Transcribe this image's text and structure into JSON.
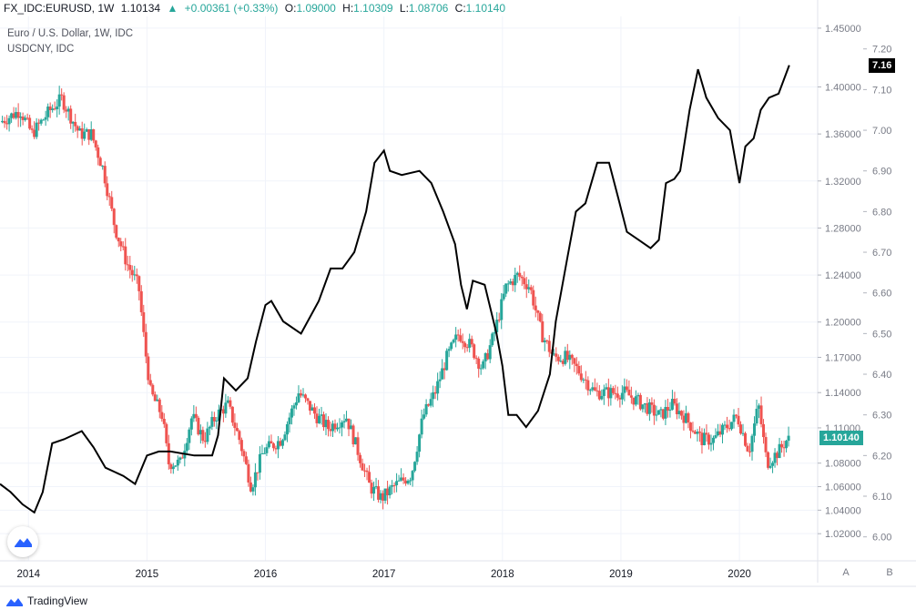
{
  "header": {
    "symbol": "FX_IDC:EURUSD, 1W",
    "last": "1.10134",
    "change": "+0.00361 (+0.33%)",
    "open_label": "O:",
    "open": "1.09000",
    "high_label": "H:",
    "high": "1.10309",
    "low_label": "L:",
    "low": "1.08706",
    "close_label": "C:",
    "close": "1.10140"
  },
  "legend": {
    "main": "Euro / U.S. Dollar, 1W, IDC",
    "overlay": "USDCNY, IDC"
  },
  "pane_buttons": [
    "A",
    "B"
  ],
  "footer": {
    "brand": "TradingView"
  },
  "colors": {
    "up": "#26a69a",
    "down": "#ef5350",
    "overlay": "#000000",
    "grid": "#f0f3fa",
    "axis_text": "#787b86"
  },
  "chart_data": {
    "type": "candlestick",
    "title": "Euro / U.S. Dollar, 1W, IDC",
    "x_ticks": [
      "2014",
      "2015",
      "2016",
      "2017",
      "2018",
      "2019",
      "2020"
    ],
    "x_range": [
      2013.76,
      2020.66
    ],
    "eurusd_axis": {
      "range": [
        1.0,
        1.46
      ],
      "ticks": [
        "1.45000",
        "1.40000",
        "1.36000",
        "1.32000",
        "1.28000",
        "1.24000",
        "1.20000",
        "1.17000",
        "1.14000",
        "1.11000",
        "1.08000",
        "1.06000",
        "1.04000",
        "1.02000"
      ]
    },
    "usdcny_axis": {
      "range": [
        5.95,
        7.28
      ],
      "ticks": [
        "7.20",
        "7.10",
        "7.00",
        "6.90",
        "6.80",
        "6.70",
        "6.60",
        "6.50",
        "6.40",
        "6.30",
        "6.20",
        "6.10",
        "6.00"
      ]
    },
    "last_eurusd": "1.10140",
    "last_usdcny": "7.16",
    "eurusd_anchors": [
      [
        2013.78,
        1.37
      ],
      [
        2013.95,
        1.38
      ],
      [
        2014.05,
        1.36
      ],
      [
        2014.2,
        1.38
      ],
      [
        2014.3,
        1.39
      ],
      [
        2014.45,
        1.36
      ],
      [
        2014.55,
        1.36
      ],
      [
        2014.65,
        1.33
      ],
      [
        2014.75,
        1.28
      ],
      [
        2014.85,
        1.25
      ],
      [
        2014.95,
        1.23
      ],
      [
        2015.0,
        1.18
      ],
      [
        2015.05,
        1.14
      ],
      [
        2015.15,
        1.12
      ],
      [
        2015.2,
        1.08
      ],
      [
        2015.3,
        1.08
      ],
      [
        2015.4,
        1.12
      ],
      [
        2015.5,
        1.1
      ],
      [
        2015.6,
        1.12
      ],
      [
        2015.7,
        1.13
      ],
      [
        2015.8,
        1.1
      ],
      [
        2015.9,
        1.06
      ],
      [
        2016.0,
        1.09
      ],
      [
        2016.15,
        1.1
      ],
      [
        2016.3,
        1.14
      ],
      [
        2016.45,
        1.12
      ],
      [
        2016.55,
        1.11
      ],
      [
        2016.7,
        1.12
      ],
      [
        2016.8,
        1.09
      ],
      [
        2016.9,
        1.06
      ],
      [
        2017.0,
        1.05
      ],
      [
        2017.1,
        1.06
      ],
      [
        2017.25,
        1.07
      ],
      [
        2017.35,
        1.12
      ],
      [
        2017.45,
        1.14
      ],
      [
        2017.55,
        1.17
      ],
      [
        2017.65,
        1.19
      ],
      [
        2017.75,
        1.18
      ],
      [
        2017.85,
        1.16
      ],
      [
        2017.95,
        1.19
      ],
      [
        2018.05,
        1.23
      ],
      [
        2018.15,
        1.24
      ],
      [
        2018.25,
        1.23
      ],
      [
        2018.35,
        1.19
      ],
      [
        2018.45,
        1.17
      ],
      [
        2018.55,
        1.17
      ],
      [
        2018.65,
        1.16
      ],
      [
        2018.8,
        1.14
      ],
      [
        2018.95,
        1.14
      ],
      [
        2019.05,
        1.14
      ],
      [
        2019.2,
        1.13
      ],
      [
        2019.35,
        1.12
      ],
      [
        2019.45,
        1.13
      ],
      [
        2019.55,
        1.12
      ],
      [
        2019.7,
        1.1
      ],
      [
        2019.8,
        1.1
      ],
      [
        2019.9,
        1.11
      ],
      [
        2020.0,
        1.12
      ],
      [
        2020.1,
        1.09
      ],
      [
        2020.18,
        1.13
      ],
      [
        2020.25,
        1.08
      ],
      [
        2020.35,
        1.09
      ],
      [
        2020.42,
        1.1
      ]
    ],
    "usdcny_points": [
      [
        2013.76,
        6.13
      ],
      [
        2013.85,
        6.11
      ],
      [
        2013.95,
        6.08
      ],
      [
        2014.05,
        6.06
      ],
      [
        2014.12,
        6.11
      ],
      [
        2014.2,
        6.23
      ],
      [
        2014.3,
        6.24
      ],
      [
        2014.45,
        6.26
      ],
      [
        2014.55,
        6.22
      ],
      [
        2014.65,
        6.17
      ],
      [
        2014.8,
        6.15
      ],
      [
        2014.9,
        6.13
      ],
      [
        2015.0,
        6.2
      ],
      [
        2015.1,
        6.21
      ],
      [
        2015.2,
        6.21
      ],
      [
        2015.4,
        6.2
      ],
      [
        2015.55,
        6.2
      ],
      [
        2015.6,
        6.25
      ],
      [
        2015.65,
        6.39
      ],
      [
        2015.75,
        6.36
      ],
      [
        2015.85,
        6.39
      ],
      [
        2015.92,
        6.48
      ],
      [
        2016.0,
        6.57
      ],
      [
        2016.05,
        6.58
      ],
      [
        2016.15,
        6.53
      ],
      [
        2016.3,
        6.5
      ],
      [
        2016.45,
        6.58
      ],
      [
        2016.55,
        6.66
      ],
      [
        2016.65,
        6.66
      ],
      [
        2016.75,
        6.7
      ],
      [
        2016.85,
        6.8
      ],
      [
        2016.92,
        6.92
      ],
      [
        2017.0,
        6.95
      ],
      [
        2017.05,
        6.9
      ],
      [
        2017.15,
        6.89
      ],
      [
        2017.3,
        6.9
      ],
      [
        2017.4,
        6.87
      ],
      [
        2017.5,
        6.8
      ],
      [
        2017.6,
        6.72
      ],
      [
        2017.65,
        6.62
      ],
      [
        2017.7,
        6.56
      ],
      [
        2017.75,
        6.63
      ],
      [
        2017.85,
        6.62
      ],
      [
        2017.95,
        6.5
      ],
      [
        2018.0,
        6.42
      ],
      [
        2018.05,
        6.3
      ],
      [
        2018.12,
        6.3
      ],
      [
        2018.2,
        6.27
      ],
      [
        2018.3,
        6.31
      ],
      [
        2018.4,
        6.4
      ],
      [
        2018.45,
        6.53
      ],
      [
        2018.55,
        6.69
      ],
      [
        2018.62,
        6.8
      ],
      [
        2018.7,
        6.82
      ],
      [
        2018.8,
        6.92
      ],
      [
        2018.9,
        6.92
      ],
      [
        2018.98,
        6.83
      ],
      [
        2019.05,
        6.75
      ],
      [
        2019.15,
        6.73
      ],
      [
        2019.25,
        6.71
      ],
      [
        2019.32,
        6.73
      ],
      [
        2019.38,
        6.87
      ],
      [
        2019.45,
        6.88
      ],
      [
        2019.5,
        6.9
      ],
      [
        2019.58,
        7.05
      ],
      [
        2019.65,
        7.15
      ],
      [
        2019.72,
        7.08
      ],
      [
        2019.82,
        7.03
      ],
      [
        2019.92,
        7.0
      ],
      [
        2020.0,
        6.87
      ],
      [
        2020.05,
        6.96
      ],
      [
        2020.12,
        6.98
      ],
      [
        2020.18,
        7.05
      ],
      [
        2020.25,
        7.08
      ],
      [
        2020.33,
        7.09
      ],
      [
        2020.42,
        7.16
      ]
    ]
  }
}
